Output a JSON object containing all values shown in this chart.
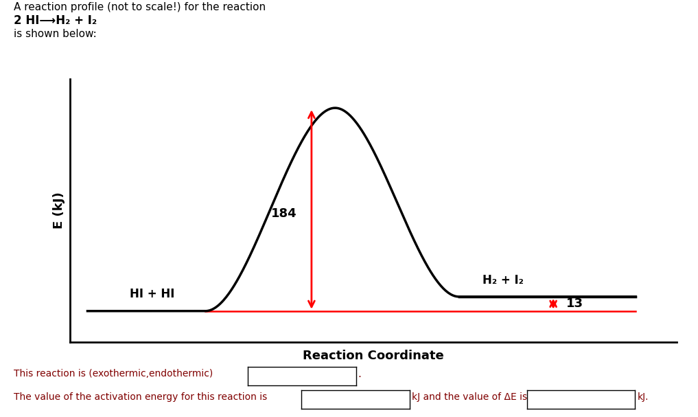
{
  "title_line1": "A reaction profile (not to scale!) for the reaction",
  "title_line2": "2 HI⟶H₂ + I₂",
  "title_line3": "is shown below:",
  "ylabel": "E (kJ)",
  "xlabel": "Reaction Coordinate",
  "reactant_label": "HI + HI",
  "product_label": "H₂ + I₂",
  "energy_label_184": "184",
  "energy_label_13": "13",
  "reactant_energy": 0,
  "product_energy": 13,
  "activation_energy": 184,
  "bottom_text1": "This reaction is (exothermic,endothermic)",
  "bottom_text2": "The value of the activation energy for this reaction is",
  "bottom_text2b": "kJ and the value of ΔE is",
  "bottom_text2c": "kJ.",
  "curve_color": "black",
  "arrow_color": "red",
  "level_color": "black",
  "bg_color": "white",
  "curve_lw": 2.5,
  "level_lw": 2.5,
  "text_color_dark": "#333333",
  "text_color_maroon": "#800000"
}
